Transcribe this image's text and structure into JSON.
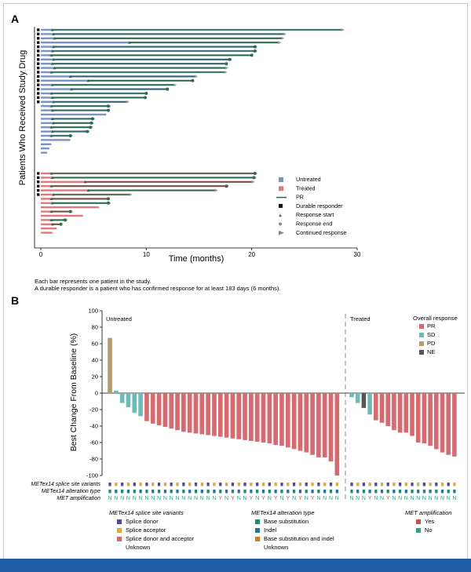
{
  "panel_a": {
    "label": "A",
    "ylabel": "Patients Who Received Study Drug",
    "xlabel": "Time (months)",
    "xticks": [
      "0",
      "10",
      "20",
      "30"
    ],
    "notes": [
      "Each bar represents one patient in the study.",
      "A durable responder is a patient who has confirmed response for at least 183 days (6 months)."
    ],
    "legend": [
      {
        "key": "untreated",
        "label": "Untreated"
      },
      {
        "key": "treated",
        "label": "Treated"
      },
      {
        "key": "pr",
        "label": "PR"
      },
      {
        "key": "durable",
        "label": "Durable responder"
      },
      {
        "key": "start",
        "label": "Response start"
      },
      {
        "key": "end",
        "label": "Response end"
      },
      {
        "key": "continued",
        "label": "Continued response"
      }
    ]
  },
  "panel_b": {
    "label": "B",
    "ylabel": "Best Change From Baseline (%)",
    "yticks": [
      "100",
      "80",
      "60",
      "40",
      "20",
      "0",
      "-20",
      "-40",
      "-60",
      "-80",
      "-100"
    ],
    "group_untreated": "Untreated",
    "group_treated": "Treated",
    "legend_title": "Overall response",
    "legend": [
      {
        "key": "PR",
        "label": "PR"
      },
      {
        "key": "SD",
        "label": "SD"
      },
      {
        "key": "PD",
        "label": "PD"
      },
      {
        "key": "NE",
        "label": "NE"
      }
    ],
    "track_labels": [
      "METex14 splice site variants",
      "METex14 alteration type",
      "MET amplification"
    ],
    "key_splice_title": "METex14 splice site variants",
    "key_splice": [
      "Splice donor",
      "Splice acceptor",
      "Splice donor and acceptor",
      "Unknown"
    ],
    "key_alt_title": "METex14 alteration type",
    "key_alt": [
      "Base substitution",
      "Indel",
      "Base substitution and indel",
      "Unknown"
    ],
    "key_amp_title": "MET amplification",
    "key_amp": [
      "Yes",
      "No"
    ]
  },
  "colors": {
    "untreated": "#7b93c6",
    "treated": "#e07a7c",
    "pr_line": "#2e6e4e",
    "PR": "#d9686f",
    "SD": "#6bbcb8",
    "PD": "#b89a6b",
    "NE": "#555555",
    "splice_donor": "#4b4a9e",
    "splice_acceptor": "#e0a93a",
    "splice_both": "#d9686f",
    "alt_base": "#1d8a72",
    "alt_indel": "#2471a8",
    "alt_both": "#d27b2b",
    "amp_yes": "#c9524f",
    "amp_no": "#27a58a"
  },
  "chart_data": [
    {
      "type": "swimmer",
      "x_unit": "months",
      "xlim": [
        0,
        30
      ],
      "untreated_patients": [
        {
          "dur": 28.5,
          "durable": true,
          "start": 1.1,
          "end": null,
          "cont": true
        },
        {
          "dur": 23.0,
          "durable": true,
          "start": 1.2,
          "end": null,
          "cont": true
        },
        {
          "dur": 22.8,
          "durable": true,
          "start": 1.3,
          "end": null,
          "cont": true
        },
        {
          "dur": 22.5,
          "durable": true,
          "start": 8.4,
          "end": null,
          "cont": true
        },
        {
          "dur": 20.5,
          "durable": true,
          "start": 1.2,
          "end": 20.3,
          "cont": false
        },
        {
          "dur": 20.5,
          "durable": true,
          "start": 1.1,
          "end": 20.3,
          "cont": false
        },
        {
          "dur": 20.0,
          "durable": true,
          "start": 1.0,
          "end": 20.0,
          "cont": false
        },
        {
          "dur": 18.1,
          "durable": true,
          "start": 1.2,
          "end": 17.9,
          "cont": false
        },
        {
          "dur": 17.6,
          "durable": true,
          "start": 1.1,
          "end": 17.6,
          "cont": false
        },
        {
          "dur": 17.5,
          "durable": true,
          "start": 1.3,
          "end": null,
          "cont": true
        },
        {
          "dur": 17.4,
          "durable": true,
          "start": 1.0,
          "end": null,
          "cont": true
        },
        {
          "dur": 14.6,
          "durable": true,
          "start": 2.8,
          "end": null,
          "cont": true
        },
        {
          "dur": 14.5,
          "durable": true,
          "start": 4.5,
          "end": 14.4,
          "cont": false
        },
        {
          "dur": 12.6,
          "durable": true,
          "start": 1.1,
          "end": null,
          "cont": true
        },
        {
          "dur": 12.1,
          "durable": true,
          "start": 2.9,
          "end": 12.0,
          "cont": false
        },
        {
          "dur": 10.1,
          "durable": true,
          "start": 1.0,
          "end": 10.0,
          "cont": false
        },
        {
          "dur": 10.0,
          "durable": true,
          "start": 1.1,
          "end": 9.9,
          "cont": false
        },
        {
          "dur": 8.1,
          "durable": true,
          "start": 1.2,
          "end": null,
          "cont": true
        },
        {
          "dur": 6.6,
          "durable": false,
          "start": 1.0,
          "end": 6.4,
          "cont": false
        },
        {
          "dur": 6.5,
          "durable": false,
          "start": 1.1,
          "end": 6.4,
          "cont": false
        },
        {
          "dur": 6.2,
          "durable": false,
          "start": null,
          "end": null,
          "cont": false
        },
        {
          "dur": 5.1,
          "durable": false,
          "start": 1.1,
          "end": 4.9,
          "cont": false
        },
        {
          "dur": 5.0,
          "durable": false,
          "start": 1.2,
          "end": 4.8,
          "cont": false
        },
        {
          "dur": 4.9,
          "durable": false,
          "start": 1.0,
          "end": 4.7,
          "cont": false
        },
        {
          "dur": 4.6,
          "durable": false,
          "start": 1.1,
          "end": 4.4,
          "cont": false
        },
        {
          "dur": 3.0,
          "durable": false,
          "start": 1.0,
          "end": 2.8,
          "cont": false
        },
        {
          "dur": 2.8,
          "durable": false,
          "start": null,
          "end": null,
          "cont": false
        },
        {
          "dur": 1.0,
          "durable": false,
          "start": null,
          "end": null,
          "cont": false
        },
        {
          "dur": 0.8,
          "durable": false,
          "start": null,
          "end": null,
          "cont": false
        },
        {
          "dur": 0.6,
          "durable": false,
          "start": null,
          "end": null,
          "cont": false
        }
      ],
      "treated_patients": [
        {
          "dur": 20.5,
          "durable": true,
          "start": 1.0,
          "end": 20.3,
          "cont": false
        },
        {
          "dur": 20.4,
          "durable": true,
          "start": 1.1,
          "end": 20.2,
          "cont": false
        },
        {
          "dur": 20.0,
          "durable": true,
          "start": 4.2,
          "end": null,
          "cont": true
        },
        {
          "dur": 17.8,
          "durable": true,
          "start": 1.0,
          "end": 17.6,
          "cont": false
        },
        {
          "dur": 16.5,
          "durable": true,
          "start": 4.5,
          "end": null,
          "cont": true
        },
        {
          "dur": 8.4,
          "durable": true,
          "start": 1.2,
          "end": null,
          "cont": true
        },
        {
          "dur": 6.5,
          "durable": false,
          "start": 1.0,
          "end": 6.4,
          "cont": false
        },
        {
          "dur": 6.6,
          "durable": false,
          "start": 1.1,
          "end": 6.4,
          "cont": false
        },
        {
          "dur": 5.5,
          "durable": false,
          "start": null,
          "end": null,
          "cont": false
        },
        {
          "dur": 3.0,
          "durable": false,
          "start": 1.0,
          "end": 2.8,
          "cont": false
        },
        {
          "dur": 4.0,
          "durable": false,
          "start": null,
          "end": null,
          "cont": false
        },
        {
          "dur": 2.5,
          "durable": false,
          "start": 1.0,
          "end": 2.3,
          "cont": false
        },
        {
          "dur": 2.0,
          "durable": false,
          "start": 1.1,
          "end": 1.9,
          "cont": false
        },
        {
          "dur": 1.5,
          "durable": false,
          "start": null,
          "end": null,
          "cont": false
        },
        {
          "dur": 1.1,
          "durable": false,
          "start": null,
          "end": null,
          "cont": false
        }
      ]
    },
    {
      "type": "bar",
      "title": "Best Change From Baseline (%)",
      "ylim": [
        -100,
        100
      ],
      "untreated": [
        {
          "v": 67,
          "r": "PD",
          "s": "D",
          "a": "B",
          "m": "N"
        },
        {
          "v": 3,
          "r": "SD",
          "s": "A",
          "a": "I",
          "m": "N"
        },
        {
          "v": -12,
          "r": "SD",
          "s": "D",
          "a": "B",
          "m": "N"
        },
        {
          "v": -17,
          "r": "SD",
          "s": "A",
          "a": "I",
          "m": "N"
        },
        {
          "v": -24,
          "r": "SD",
          "s": "D",
          "a": "B",
          "m": "N"
        },
        {
          "v": -28,
          "r": "SD",
          "s": "A",
          "a": "I",
          "m": "N"
        },
        {
          "v": -34,
          "r": "PR",
          "s": "D",
          "a": "B",
          "m": "N"
        },
        {
          "v": -37,
          "r": "PR",
          "s": "A",
          "a": "I",
          "m": "N"
        },
        {
          "v": -39,
          "r": "PR",
          "s": "D",
          "a": "B",
          "m": "N"
        },
        {
          "v": -41,
          "r": "PR",
          "s": "A",
          "a": "I",
          "m": "N"
        },
        {
          "v": -43,
          "r": "PR",
          "s": "D",
          "a": "B",
          "m": "N"
        },
        {
          "v": -45,
          "r": "PR",
          "s": "A",
          "a": "I",
          "m": "N"
        },
        {
          "v": -47,
          "r": "PR",
          "s": "D",
          "a": "B",
          "m": "N"
        },
        {
          "v": -48,
          "r": "PR",
          "s": "A",
          "a": "I",
          "m": "N"
        },
        {
          "v": -49,
          "r": "PR",
          "s": "D",
          "a": "B",
          "m": "N"
        },
        {
          "v": -50,
          "r": "PR",
          "s": "A",
          "a": "I",
          "m": "N"
        },
        {
          "v": -51,
          "r": "PR",
          "s": "D",
          "a": "B",
          "m": "N"
        },
        {
          "v": -52,
          "r": "PR",
          "s": "A",
          "a": "I",
          "m": "N"
        },
        {
          "v": -53,
          "r": "PR",
          "s": "D",
          "a": "B",
          "m": "Y"
        },
        {
          "v": -54,
          "r": "PR",
          "s": "A",
          "a": "I",
          "m": "N"
        },
        {
          "v": -55,
          "r": "PR",
          "s": "D",
          "a": "B",
          "m": "Y"
        },
        {
          "v": -56,
          "r": "PR",
          "s": "A",
          "a": "I",
          "m": "N"
        },
        {
          "v": -57,
          "r": "PR",
          "s": "D",
          "a": "B",
          "m": "N"
        },
        {
          "v": -58,
          "r": "PR",
          "s": "A",
          "a": "I",
          "m": "Y"
        },
        {
          "v": -59,
          "r": "PR",
          "s": "D",
          "a": "B",
          "m": "N"
        },
        {
          "v": -60,
          "r": "PR",
          "s": "A",
          "a": "I",
          "m": "Y"
        },
        {
          "v": -61,
          "r": "PR",
          "s": "D",
          "a": "B",
          "m": "N"
        },
        {
          "v": -63,
          "r": "PR",
          "s": "A",
          "a": "I",
          "m": "Y"
        },
        {
          "v": -64,
          "r": "PR",
          "s": "D",
          "a": "B",
          "m": "N"
        },
        {
          "v": -66,
          "r": "PR",
          "s": "A",
          "a": "I",
          "m": "Y"
        },
        {
          "v": -68,
          "r": "PR",
          "s": "D",
          "a": "B",
          "m": "N"
        },
        {
          "v": -70,
          "r": "PR",
          "s": "A",
          "a": "I",
          "m": "Y"
        },
        {
          "v": -72,
          "r": "PR",
          "s": "D",
          "a": "B",
          "m": "N"
        },
        {
          "v": -75,
          "r": "PR",
          "s": "A",
          "a": "I",
          "m": "Y"
        },
        {
          "v": -78,
          "r": "PR",
          "s": "D",
          "a": "B",
          "m": "N"
        },
        {
          "v": -78,
          "r": "PR",
          "s": "A",
          "a": "I",
          "m": "N"
        },
        {
          "v": -83,
          "r": "PR",
          "s": "D",
          "a": "B",
          "m": "N"
        },
        {
          "v": -100,
          "r": "PR",
          "s": "A",
          "a": "I",
          "m": "N"
        }
      ],
      "treated": [
        {
          "v": -5,
          "r": "SD",
          "s": "D",
          "a": "B",
          "m": "N"
        },
        {
          "v": -12,
          "r": "SD",
          "s": "A",
          "a": "I",
          "m": "N"
        },
        {
          "v": -18,
          "r": "NE",
          "s": "D",
          "a": "B",
          "m": "N"
        },
        {
          "v": -26,
          "r": "SD",
          "s": "A",
          "a": "I",
          "m": "Y"
        },
        {
          "v": -33,
          "r": "PR",
          "s": "D",
          "a": "B",
          "m": "N"
        },
        {
          "v": -36,
          "r": "PR",
          "s": "A",
          "a": "I",
          "m": "N"
        },
        {
          "v": -40,
          "r": "PR",
          "s": "D",
          "a": "B",
          "m": "Y"
        },
        {
          "v": -45,
          "r": "PR",
          "s": "A",
          "a": "I",
          "m": "N"
        },
        {
          "v": -48,
          "r": "PR",
          "s": "D",
          "a": "B",
          "m": "N"
        },
        {
          "v": -48,
          "r": "PR",
          "s": "A",
          "a": "I",
          "m": "N"
        },
        {
          "v": -52,
          "r": "PR",
          "s": "D",
          "a": "B",
          "m": "N"
        },
        {
          "v": -60,
          "r": "PR",
          "s": "A",
          "a": "I",
          "m": "N"
        },
        {
          "v": -61,
          "r": "PR",
          "s": "D",
          "a": "B",
          "m": "N"
        },
        {
          "v": -64,
          "r": "PR",
          "s": "A",
          "a": "I",
          "m": "N"
        },
        {
          "v": -68,
          "r": "PR",
          "s": "D",
          "a": "B",
          "m": "N"
        },
        {
          "v": -72,
          "r": "PR",
          "s": "A",
          "a": "I",
          "m": "N"
        },
        {
          "v": -75,
          "r": "PR",
          "s": "D",
          "a": "B",
          "m": "N"
        },
        {
          "v": -77,
          "r": "PR",
          "s": "A",
          "a": "I",
          "m": "N"
        }
      ]
    }
  ]
}
